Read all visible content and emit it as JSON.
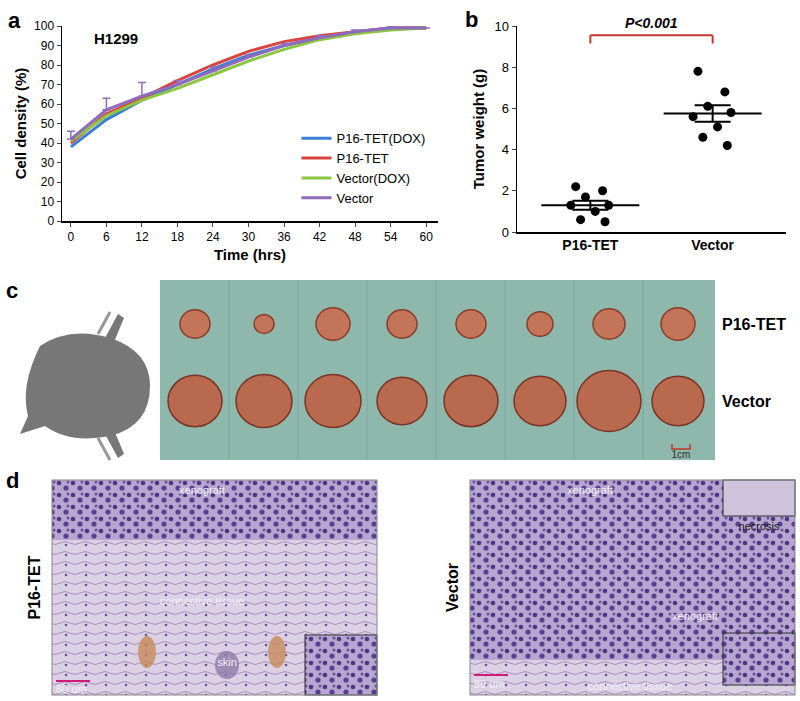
{
  "chart_data": [
    {
      "type": "line",
      "annotations": [
        {
          "text": "a"
        },
        {
          "text": "H1299"
        }
      ],
      "x_label": "Time (hrs)",
      "y_label": "Cell density (%)",
      "x": [
        0,
        6,
        12,
        18,
        24,
        30,
        36,
        42,
        48,
        54,
        60
      ],
      "xlim": [
        -1.5,
        62
      ],
      "xticks": [
        0,
        6,
        12,
        18,
        24,
        30,
        36,
        42,
        48,
        54,
        60
      ],
      "ylim": [
        0,
        100
      ],
      "yticks": [
        0,
        10,
        20,
        30,
        40,
        50,
        60,
        70,
        80,
        90,
        100
      ],
      "grid": false,
      "legend": "lower right",
      "series": [
        {
          "name": "P16-TET(DOX)",
          "color": "#3a7fd5",
          "values": [
            38,
            52,
            62,
            70,
            78,
            85,
            90,
            94,
            97,
            99,
            99
          ]
        },
        {
          "name": "P16-TET",
          "color": "#d9453d",
          "values": [
            40,
            55,
            63,
            72,
            80,
            87,
            92,
            95,
            97,
            99,
            99
          ]
        },
        {
          "name": "Vector(DOX)",
          "color": "#8cc63f",
          "values": [
            41,
            54,
            62,
            68,
            75,
            82,
            88,
            93,
            96,
            98,
            99
          ]
        },
        {
          "name": "Vector",
          "color": "#8e6bbf",
          "values": [
            42,
            57,
            64,
            70,
            77,
            84,
            90,
            94,
            97,
            99,
            99
          ],
          "errors": [
            4,
            6,
            7,
            2,
            2,
            1,
            1,
            1,
            1,
            1,
            0
          ]
        }
      ]
    },
    {
      "type": "scatter",
      "annotations": [
        {
          "text": "b"
        },
        {
          "text": "P<0.001",
          "color": "#c0392b"
        }
      ],
      "y_label": "Tumor weight (g)",
      "categories": [
        "P16-TET",
        "Vector"
      ],
      "values": [
        [
          2.2,
          2.0,
          1.7,
          1.3,
          1.3,
          1.0,
          0.6,
          0.5
        ],
        [
          7.8,
          6.8,
          6.1,
          5.8,
          5.6,
          5.1,
          4.6,
          4.2
        ]
      ],
      "mean": [
        1.3,
        5.75
      ],
      "error": [
        0.22,
        0.4
      ],
      "color": "#000000",
      "ylim": [
        0,
        10
      ],
      "yticks": [
        0,
        2,
        4,
        6,
        8,
        10
      ],
      "grid": false
    }
  ],
  "panel_c": {
    "label": "c",
    "rows": [
      "P16-TET",
      "Vector"
    ],
    "scale_bar": "1cm"
  },
  "panel_d": {
    "label": "d",
    "images": [
      {
        "title": "P16-TET",
        "labels": [
          "xenograft",
          "connective tissue",
          "skin"
        ],
        "scale_bar": "80 um"
      },
      {
        "title": "Vector",
        "labels": [
          "xenograft",
          "necrosis",
          "xenograft",
          "connective tissue"
        ],
        "scale_bar": "80 um"
      }
    ]
  }
}
